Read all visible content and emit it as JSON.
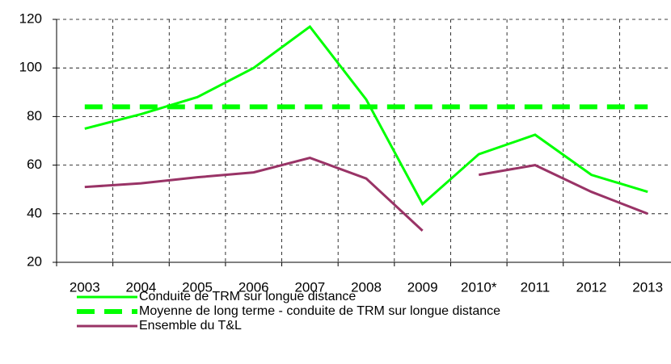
{
  "chart_data": {
    "type": "line",
    "categories": [
      "2003",
      "2004",
      "2005",
      "2006",
      "2007",
      "2008",
      "2009",
      "2010*",
      "2011",
      "2012",
      "2013"
    ],
    "series": [
      {
        "name": "Conduite de TRM sur longue distance",
        "color": "#00ff00",
        "values": [
          75,
          81,
          88,
          100,
          117,
          87,
          44,
          64.5,
          72.5,
          56,
          49
        ]
      },
      {
        "name": "Moyenne de long terme - conduite de TRM sur longue distance",
        "color": "#00ff00",
        "dashed": true,
        "values": [
          84,
          84,
          84,
          84,
          84,
          84,
          84,
          84,
          84,
          84,
          84
        ]
      },
      {
        "name": "Ensemble du T&L",
        "color": "#993366",
        "break_before_index": 7,
        "values": [
          51,
          52.5,
          55,
          57,
          63,
          54.5,
          33,
          56,
          60,
          49,
          40
        ]
      }
    ],
    "ylim": [
      20,
      120
    ],
    "yticks": [
      20,
      40,
      60,
      80,
      100,
      120
    ],
    "grid": true,
    "legend": "bottom"
  }
}
